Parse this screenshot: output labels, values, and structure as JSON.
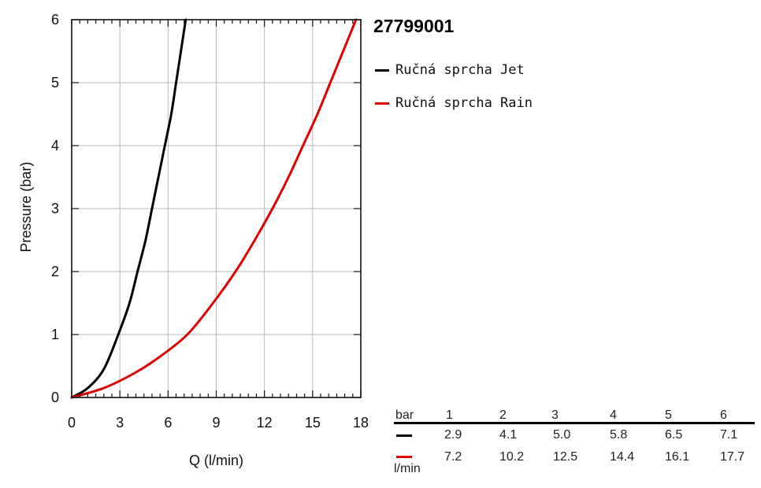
{
  "chart_data": {
    "type": "line",
    "xlabel": "Q (l/min)",
    "ylabel": "Pressure (bar)",
    "xlim": [
      0,
      18
    ],
    "ylim": [
      0,
      6
    ],
    "xticks": [
      0,
      3,
      6,
      9,
      12,
      15,
      18
    ],
    "yticks": [
      0,
      1,
      2,
      3,
      4,
      5,
      6
    ],
    "grid": true,
    "legend_position": "right",
    "series": [
      {
        "name": "Ručná sprcha Jet",
        "color": "#000000",
        "x": [
          0,
          1.0,
          2.0,
          2.9,
          3.6,
          4.1,
          4.6,
          5.0,
          5.4,
          5.8,
          6.2,
          6.5,
          6.8,
          7.1
        ],
        "y": [
          0,
          0.15,
          0.45,
          1.0,
          1.5,
          2.0,
          2.5,
          3.0,
          3.5,
          4.0,
          4.5,
          5.0,
          5.5,
          6.0
        ]
      },
      {
        "name": "Ručná sprcha Rain",
        "color": "#e00000",
        "x": [
          0,
          2.0,
          4.0,
          5.5,
          7.2,
          8.8,
          10.2,
          11.4,
          12.5,
          13.5,
          14.4,
          15.3,
          16.1,
          16.9,
          17.7
        ],
        "y": [
          0,
          0.15,
          0.4,
          0.65,
          1.0,
          1.5,
          2.0,
          2.5,
          3.0,
          3.5,
          4.0,
          4.5,
          5.0,
          5.5,
          6.0
        ]
      }
    ]
  },
  "product_id": "27799001",
  "table": {
    "header_label": "bar",
    "unit_label": "l/min",
    "pressures": [
      "1",
      "2",
      "3",
      "4",
      "5",
      "6"
    ],
    "rows": [
      {
        "color": "#000000",
        "values": [
          "2.9",
          "4.1",
          "5.0",
          "5.8",
          "6.5",
          "7.1"
        ]
      },
      {
        "color": "#e00000",
        "values": [
          "7.2",
          "10.2",
          "12.5",
          "14.4",
          "16.1",
          "17.7"
        ]
      }
    ]
  }
}
